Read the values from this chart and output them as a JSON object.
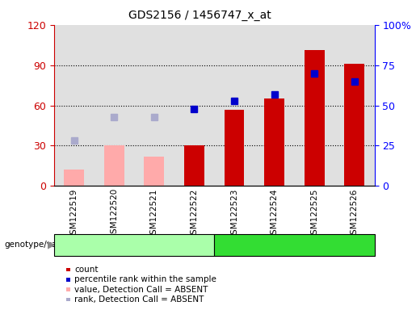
{
  "title": "GDS2156 / 1456747_x_at",
  "samples": [
    "GSM122519",
    "GSM122520",
    "GSM122521",
    "GSM122522",
    "GSM122523",
    "GSM122524",
    "GSM122525",
    "GSM122526"
  ],
  "count_values": [
    null,
    null,
    null,
    30,
    57,
    65,
    101,
    91
  ],
  "count_absent": [
    12,
    30,
    22,
    null,
    null,
    null,
    null,
    null
  ],
  "percentile_rank": [
    null,
    null,
    null,
    48,
    53,
    57,
    70,
    65
  ],
  "percentile_rank_absent": [
    28,
    43,
    43,
    null,
    null,
    null,
    null,
    null
  ],
  "count_color": "#cc0000",
  "count_absent_color": "#ffaaaa",
  "rank_color": "#0000cc",
  "rank_absent_color": "#aaaacc",
  "ylim_left": [
    0,
    120
  ],
  "ylim_right": [
    0,
    100
  ],
  "yticks_left": [
    0,
    30,
    60,
    90,
    120
  ],
  "yticks_right": [
    0,
    25,
    50,
    75,
    100
  ],
  "ytick_labels_right": [
    "0",
    "25",
    "50",
    "75",
    "100%"
  ],
  "group1_indices": [
    0,
    1,
    2,
    3
  ],
  "group2_indices": [
    4,
    5,
    6,
    7
  ],
  "group1_color": "#aaffaa",
  "group2_color": "#33dd33",
  "xlabel_left": "genotype/variation",
  "legend_items": [
    {
      "label": "count",
      "color": "#cc0000"
    },
    {
      "label": "percentile rank within the sample",
      "color": "#0000cc"
    },
    {
      "label": "value, Detection Call = ABSENT",
      "color": "#ffaaaa"
    },
    {
      "label": "rank, Detection Call = ABSENT",
      "color": "#aaaacc"
    }
  ],
  "bar_width": 0.5,
  "marker_size": 6,
  "background_color": "#eeeeee",
  "plot_bg": "#ffffff"
}
